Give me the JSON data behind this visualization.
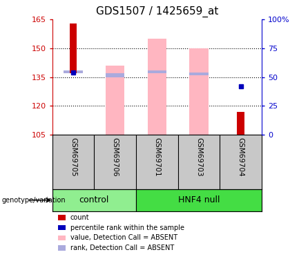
{
  "title": "GDS1507 / 1425659_at",
  "samples": [
    "GSM69705",
    "GSM69706",
    "GSM69701",
    "GSM69703",
    "GSM69704"
  ],
  "ylim_left": [
    105,
    165
  ],
  "yticks_left": [
    105,
    120,
    135,
    150,
    165
  ],
  "ylim_right": [
    0,
    100
  ],
  "yticks_right": [
    0,
    25,
    50,
    75,
    100
  ],
  "ytick_labels_right": [
    "0",
    "25",
    "50",
    "75",
    "100%"
  ],
  "red_bars": {
    "GSM69705": [
      163,
      137
    ],
    "GSM69706": [
      null,
      null
    ],
    "GSM69701": [
      null,
      null
    ],
    "GSM69703": [
      null,
      null
    ],
    "GSM69704": [
      117,
      105
    ]
  },
  "pink_bars": {
    "GSM69705": null,
    "GSM69706": [
      105,
      141
    ],
    "GSM69701": [
      105,
      155
    ],
    "GSM69703": [
      105,
      150
    ],
    "GSM69704": null
  },
  "blue_squares": {
    "GSM69705": 137.5,
    "GSM69706": null,
    "GSM69701": null,
    "GSM69703": null,
    "GSM69704": 130
  },
  "light_blue_bars": {
    "GSM69705": [
      137,
      138.5
    ],
    "GSM69706": [
      135,
      137
    ],
    "GSM69701": [
      137,
      138.5
    ],
    "GSM69703": [
      136,
      137.5
    ],
    "GSM69704": null
  },
  "control_color": "#90EE90",
  "hnf4_color": "#44DD44",
  "bar_color_red": "#CC0000",
  "bar_color_pink": "#FFB6C1",
  "bar_color_blue": "#0000BB",
  "bar_color_lightblue": "#AAAADD",
  "axis_color_left": "#CC0000",
  "axis_color_right": "#0000CC",
  "bg_xlabel": "#C8C8C8",
  "title_fontsize": 11,
  "sample_fontsize": 7.5,
  "legend_fontsize": 7,
  "group_fontsize": 9
}
